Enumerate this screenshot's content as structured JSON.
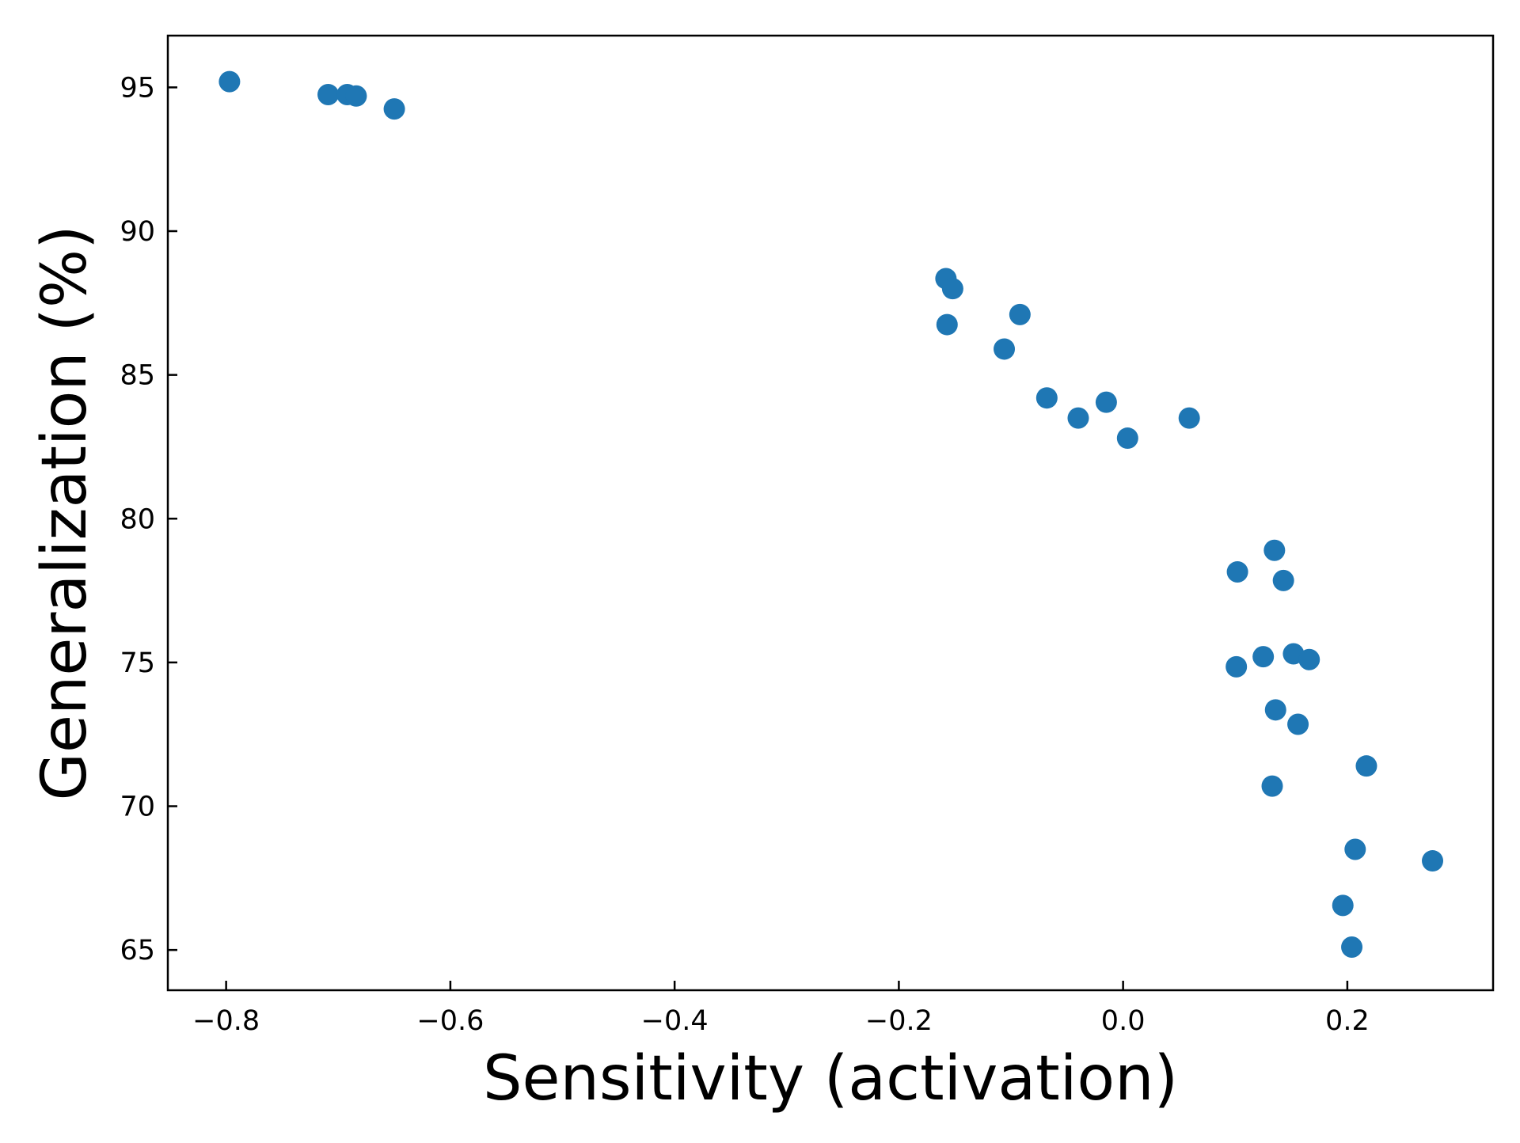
{
  "colors": {
    "marker": "#1f77b4",
    "axes": "#000000",
    "background": "#ffffff"
  },
  "chart_data": {
    "type": "scatter",
    "title": "",
    "xlabel": "Sensitivity (activation)",
    "ylabel": "Generalization (%)",
    "xlim": [
      -0.852,
      0.33
    ],
    "ylim": [
      63.6,
      96.8
    ],
    "grid": false,
    "legend": "none",
    "x_ticks": [
      -0.8,
      -0.6,
      -0.4,
      -0.2,
      0.0,
      0.2
    ],
    "x_tick_labels": [
      "−0.8",
      "−0.6",
      "−0.4",
      "−0.2",
      "0.0",
      "0.2"
    ],
    "y_ticks": [
      65,
      70,
      75,
      80,
      85,
      90,
      95
    ],
    "y_tick_labels": [
      "65",
      "70",
      "75",
      "80",
      "85",
      "90",
      "95"
    ],
    "series": [
      {
        "points": [
          {
            "x": -0.797,
            "y": 95.2
          },
          {
            "x": -0.709,
            "y": 94.75
          },
          {
            "x": -0.692,
            "y": 94.75
          },
          {
            "x": -0.684,
            "y": 94.7
          },
          {
            "x": -0.65,
            "y": 94.25
          },
          {
            "x": -0.158,
            "y": 88.35
          },
          {
            "x": -0.152,
            "y": 88.0
          },
          {
            "x": -0.157,
            "y": 86.75
          },
          {
            "x": -0.092,
            "y": 87.1
          },
          {
            "x": -0.106,
            "y": 85.9
          },
          {
            "x": -0.068,
            "y": 84.2
          },
          {
            "x": -0.04,
            "y": 83.5
          },
          {
            "x": -0.015,
            "y": 84.05
          },
          {
            "x": 0.004,
            "y": 82.8
          },
          {
            "x": 0.059,
            "y": 83.5
          },
          {
            "x": 0.102,
            "y": 78.15
          },
          {
            "x": 0.135,
            "y": 78.9
          },
          {
            "x": 0.143,
            "y": 77.85
          },
          {
            "x": 0.101,
            "y": 74.85
          },
          {
            "x": 0.125,
            "y": 75.2
          },
          {
            "x": 0.152,
            "y": 75.3
          },
          {
            "x": 0.166,
            "y": 75.1
          },
          {
            "x": 0.136,
            "y": 73.35
          },
          {
            "x": 0.156,
            "y": 72.85
          },
          {
            "x": 0.217,
            "y": 71.4
          },
          {
            "x": 0.133,
            "y": 70.7
          },
          {
            "x": 0.207,
            "y": 68.5
          },
          {
            "x": 0.276,
            "y": 68.1
          },
          {
            "x": 0.196,
            "y": 66.55
          },
          {
            "x": 0.204,
            "y": 65.1
          }
        ]
      }
    ]
  }
}
